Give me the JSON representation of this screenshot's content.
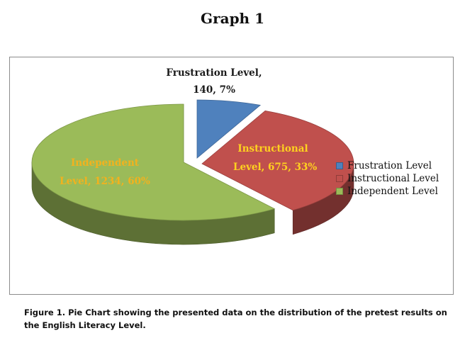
{
  "title": "Graph 1",
  "caption": "Figure 1. Pie Chart showing the presented data on the distribution of the pretest results on the English Literacy Level.",
  "chart_data": {
    "type": "pie",
    "title": "Graph 1",
    "legend_position": "right",
    "slices": [
      {
        "name": "Frustration Level",
        "value": 140,
        "percent": "7%",
        "color": "#4f81bd",
        "label_line1": "Frustration Level,",
        "label_line2": "140, 7%"
      },
      {
        "name": "Instructional Level",
        "value": 675,
        "percent": "33%",
        "color": "#c0504d",
        "label_line1": "Instructional",
        "label_line2": "Level, 675, 33%"
      },
      {
        "name": "Independent Level",
        "value": 1234,
        "percent": "60%",
        "color": "#9bbb59",
        "label_line1": "Independent",
        "label_line2": "Level, 1234, 60%"
      }
    ],
    "legend": [
      {
        "label": "Frustration Level",
        "color": "#4f81bd"
      },
      {
        "label": "Instructional Level",
        "color": "#c0504d"
      },
      {
        "label": "Independent Level",
        "color": "#9bbb59"
      }
    ]
  }
}
